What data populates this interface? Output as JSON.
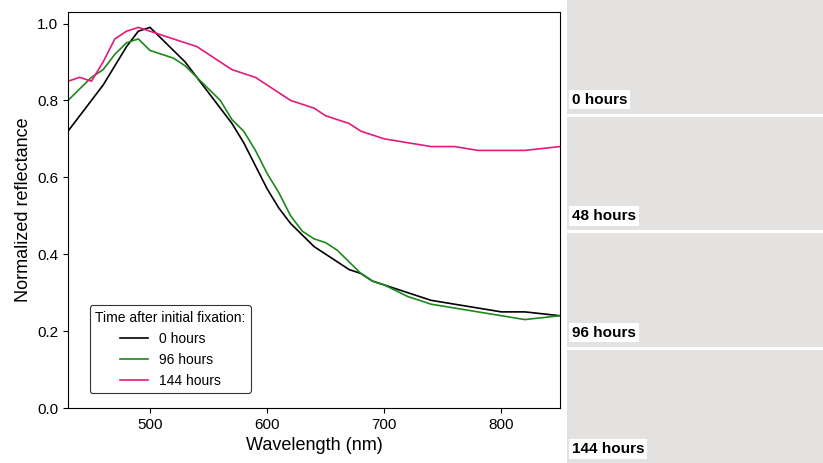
{
  "chart_data": {
    "type": "line",
    "x_label": "Wavelength (nm)",
    "y_label": "Normalized reflectance",
    "legend_title": "Time after initial fixation:",
    "legend": "lower left",
    "x": [
      430,
      440,
      450,
      460,
      470,
      480,
      490,
      500,
      510,
      520,
      530,
      540,
      550,
      560,
      570,
      580,
      590,
      600,
      610,
      620,
      630,
      640,
      650,
      660,
      670,
      680,
      690,
      700,
      720,
      740,
      760,
      780,
      800,
      820,
      850
    ],
    "series": [
      {
        "name": "0 hours",
        "color": "#000000",
        "values": [
          0.72,
          0.76,
          0.8,
          0.84,
          0.89,
          0.94,
          0.98,
          0.99,
          0.96,
          0.93,
          0.9,
          0.86,
          0.82,
          0.78,
          0.74,
          0.69,
          0.63,
          0.57,
          0.52,
          0.48,
          0.45,
          0.42,
          0.4,
          0.38,
          0.36,
          0.35,
          0.33,
          0.32,
          0.3,
          0.28,
          0.27,
          0.26,
          0.25,
          0.25,
          0.24
        ]
      },
      {
        "name": "96 hours",
        "color": "#1a8a1a",
        "values": [
          0.8,
          0.83,
          0.86,
          0.88,
          0.92,
          0.95,
          0.96,
          0.93,
          0.92,
          0.91,
          0.89,
          0.86,
          0.83,
          0.8,
          0.75,
          0.72,
          0.67,
          0.61,
          0.56,
          0.5,
          0.46,
          0.44,
          0.43,
          0.41,
          0.38,
          0.35,
          0.33,
          0.32,
          0.29,
          0.27,
          0.26,
          0.25,
          0.24,
          0.23,
          0.24
        ]
      },
      {
        "name": "144 hours",
        "color": "#e6197a",
        "values": [
          0.85,
          0.86,
          0.85,
          0.9,
          0.96,
          0.98,
          0.99,
          0.98,
          0.97,
          0.96,
          0.95,
          0.94,
          0.92,
          0.9,
          0.88,
          0.87,
          0.86,
          0.84,
          0.82,
          0.8,
          0.79,
          0.78,
          0.76,
          0.75,
          0.74,
          0.72,
          0.71,
          0.7,
          0.69,
          0.68,
          0.68,
          0.67,
          0.67,
          0.67,
          0.68
        ]
      }
    ],
    "xlim": [
      430,
      850
    ],
    "xticks": [
      500,
      600,
      700,
      800
    ],
    "ylim": [
      0,
      1.03
    ],
    "yticks": [
      {
        "value": 0,
        "label": "0.0"
      },
      0.2,
      0.4,
      0.6,
      0.8,
      {
        "value": 1,
        "label": "1.0"
      }
    ],
    "grid": false
  },
  "images": {
    "labels": [
      "0 hours",
      "48 hours",
      "96 hours",
      "144 hours"
    ]
  }
}
